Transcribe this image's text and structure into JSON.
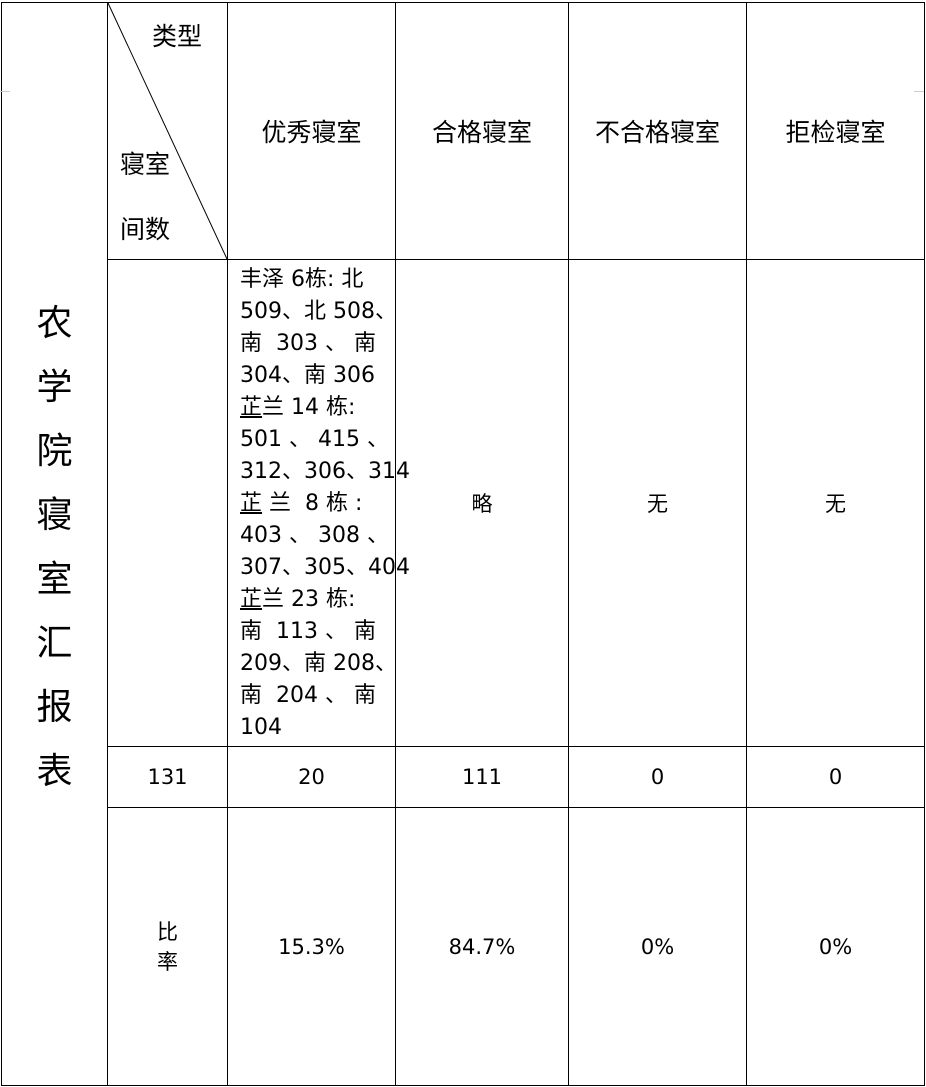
{
  "title": "农学院寝室汇报表",
  "corner": {
    "top": "类型",
    "bottom_line1": "寝室",
    "bottom_line2": "间数"
  },
  "columns": [
    "优秀寝室",
    "合格寝室",
    "不合格寝室",
    "拒检寝室"
  ],
  "detail_row": {
    "excellent_lines": [
      "丰泽 6栋: 北",
      "509、北 508、",
      "南  303 、 南",
      "304、南 306",
      "芷兰 14 栋:",
      "501 、 415 、",
      "312、306、314",
      "芷 兰  8 栋 :",
      "403 、 308 、",
      "307、305、404",
      "芷兰 23 栋:",
      "南  113 、 南",
      "209、南 208、",
      "南  204 、 南",
      "104"
    ],
    "qualified": "略",
    "unqualified": "无",
    "refused": "无"
  },
  "count_row": {
    "total": "131",
    "values": [
      "20",
      "111",
      "0",
      "0"
    ]
  },
  "rate_row": {
    "label_line1": "比",
    "label_line2": "率",
    "values": [
      "15.3%",
      "84.7%",
      "0%",
      "0%"
    ]
  }
}
